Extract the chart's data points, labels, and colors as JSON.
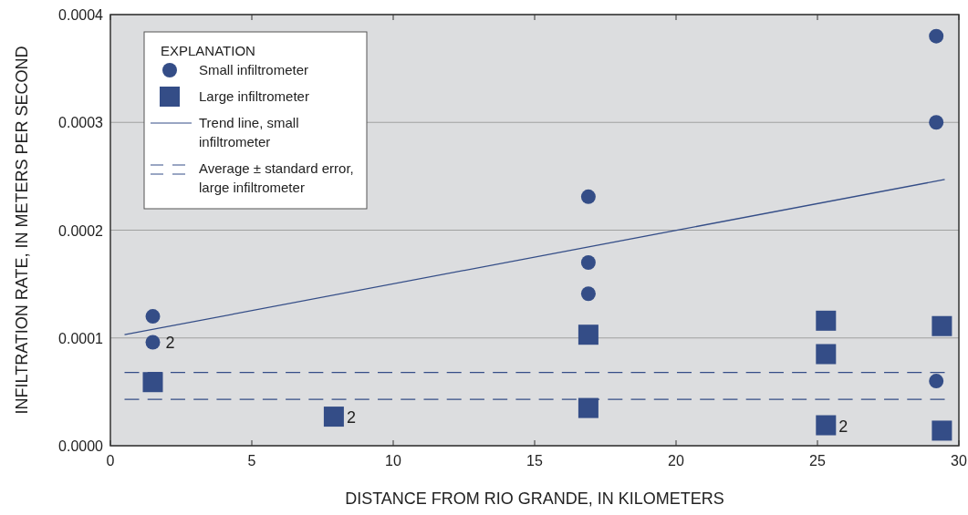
{
  "chart_data": {
    "type": "scatter",
    "xlabel": "DISTANCE FROM RIO GRANDE, IN KILOMETERS",
    "ylabel": "INFILTRATION RATE, IN METERS PER SECOND",
    "legend_title": "EXPLANATION",
    "legend": "top left",
    "grid": "y",
    "xlim": [
      0,
      30
    ],
    "xticks": [
      0,
      5,
      10,
      15,
      20,
      25,
      30
    ],
    "ylim": [
      0,
      0.0004
    ],
    "yticks": [
      {
        "value": 0,
        "label": "0.0000"
      },
      {
        "value": 0.0001,
        "label": "0.0001"
      },
      {
        "value": 0.0002,
        "label": "0.0002"
      },
      {
        "value": 0.0003,
        "label": "0.0003"
      },
      {
        "value": 0.0004,
        "label": "0.0004"
      }
    ],
    "series": [
      {
        "name": "Small infiltrometer",
        "marker": "circle",
        "color": "#344d87",
        "x": [
          1.5,
          1.5,
          16.9,
          16.9,
          16.9,
          29.2,
          29.2,
          29.2
        ],
        "values": [
          0.00012,
          9.6e-05,
          0.000231,
          0.00017,
          0.000141,
          0.00038,
          0.0003,
          6e-05
        ]
      },
      {
        "name": "Large infiltrometer",
        "marker": "square",
        "color": "#344d87",
        "x": [
          1.5,
          7.9,
          16.9,
          16.9,
          25.3,
          25.3,
          25.3,
          29.4
        ],
        "values": [
          5.9e-05,
          2.7e-05,
          0.000103,
          3.5e-05,
          0.000116,
          8.5e-05,
          1.9e-05,
          0.000111
        ]
      },
      {
        "name": "Trend line, small infiltrometer",
        "type": "line",
        "line_style": "solid",
        "color": "#344d87",
        "x": [
          0.5,
          29.5
        ],
        "values": [
          0.000103,
          0.000247
        ]
      },
      {
        "name": "Average ± standard error, large infiltrometer",
        "type": "line",
        "line_style": "dashed",
        "color": "#344d87",
        "x": [
          0.5,
          29.5
        ],
        "values": [
          6.8e-05,
          6.8e-05
        ]
      },
      {
        "type": "line",
        "line_style": "dashed",
        "color": "#344d87",
        "x": [
          0.5,
          29.5
        ],
        "values": [
          4.3e-05,
          4.3e-05
        ]
      },
      {
        "marker": "square",
        "color": "#344d87",
        "x": [
          29.4
        ],
        "values": [
          1.4e-05
        ]
      }
    ],
    "annotations": [
      {
        "text": "2",
        "x": 1.5,
        "y": 9.6e-05
      },
      {
        "text": "2",
        "x": 7.9,
        "y": 2.7e-05
      },
      {
        "text": "2",
        "x": 25.3,
        "y": 1.9e-05
      }
    ]
  }
}
